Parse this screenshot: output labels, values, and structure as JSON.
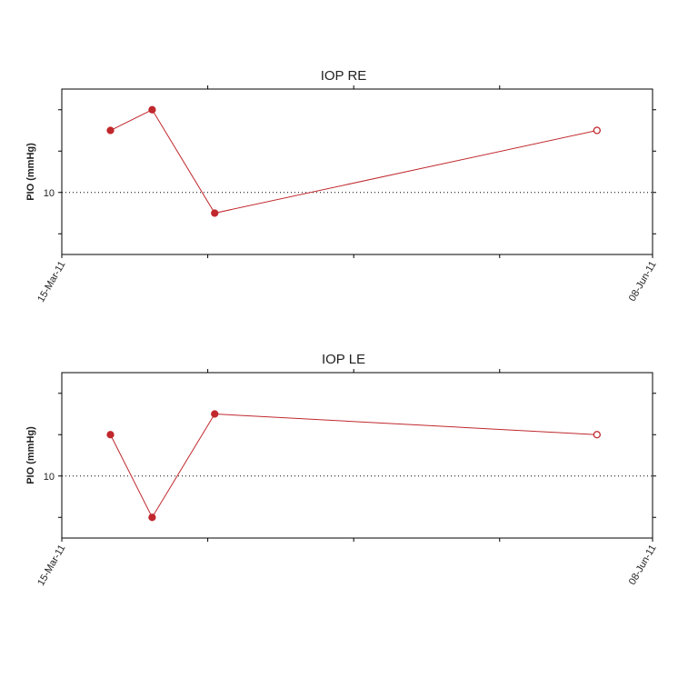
{
  "chart_data": [
    {
      "type": "line",
      "title": "IOP  RE",
      "y_label": "PIO (mmHg)",
      "x": [
        "2011-03-22",
        "2011-03-28",
        "2011-04-06",
        "2011-05-31"
      ],
      "series": [
        {
          "name": "RE",
          "color": "#c0282d",
          "values": [
            13,
            14,
            9,
            13
          ],
          "open_markers": [
            false,
            false,
            false,
            true
          ]
        }
      ],
      "xlim": [
        "2011-03-15",
        "2011-06-08"
      ],
      "xticks": [
        {
          "value": "2011-03-15",
          "label": "15-Mar-11"
        },
        {
          "value": "2011-06-08",
          "label": "08-Jun-11"
        }
      ],
      "x_minor_ticks": [
        "2011-04-05",
        "2011-04-26",
        "2011-05-17"
      ],
      "ylim": [
        7,
        15
      ],
      "yticks": [
        10
      ],
      "y_minor_ticks": [
        8,
        12,
        14
      ],
      "grid": "dotted"
    },
    {
      "type": "line",
      "title": "IOP  LE",
      "y_label": "PIO (mmHg)",
      "x": [
        "2011-03-22",
        "2011-03-28",
        "2011-04-06",
        "2011-05-31"
      ],
      "series": [
        {
          "name": "LE",
          "color": "#c0282d",
          "values": [
            12,
            8,
            13,
            12
          ],
          "open_markers": [
            false,
            false,
            false,
            true
          ]
        }
      ],
      "xlim": [
        "2011-03-15",
        "2011-06-08"
      ],
      "xticks": [
        {
          "value": "2011-03-15",
          "label": "15-Mar-11"
        },
        {
          "value": "2011-06-08",
          "label": "08-Jun-11"
        }
      ],
      "x_minor_ticks": [
        "2011-04-05",
        "2011-04-26",
        "2011-05-17"
      ],
      "ylim": [
        7,
        15
      ],
      "yticks": [
        10
      ],
      "y_minor_ticks": [
        8,
        12,
        14
      ],
      "grid": "dotted"
    }
  ]
}
